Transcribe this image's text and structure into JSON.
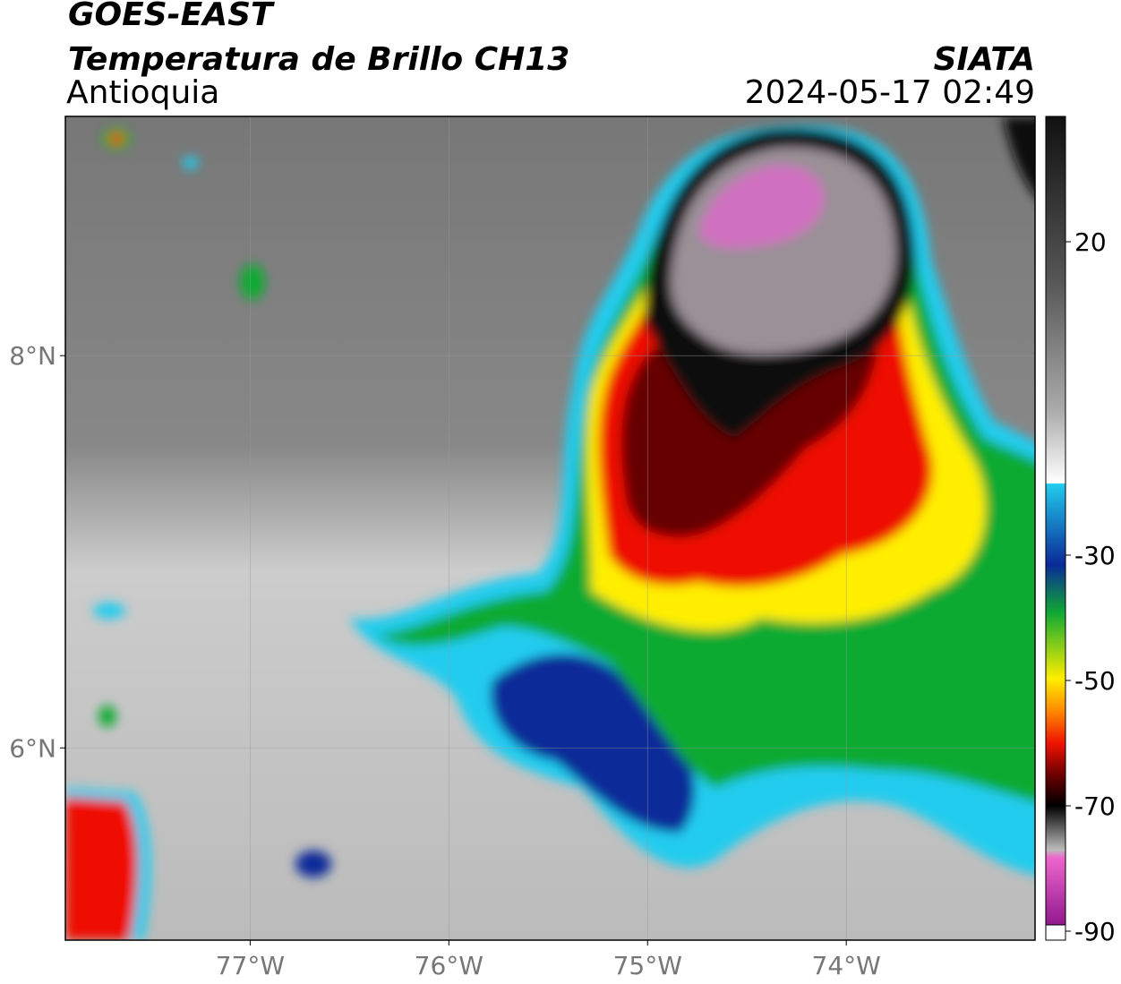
{
  "header": {
    "title": "GOES-EAST",
    "subtitle": "Temperatura de Brillo CH13",
    "region": "Antioquia",
    "source": "SIATA",
    "datetime": "2024-05-17 02:49"
  },
  "map": {
    "xlim": [
      -77.93,
      -73.05
    ],
    "ylim": [
      5.02,
      9.22
    ],
    "xticks": [
      {
        "value": -77,
        "label": "77°W"
      },
      {
        "value": -76,
        "label": "76°W"
      },
      {
        "value": -75,
        "label": "75°W"
      },
      {
        "value": -74,
        "label": "74°W"
      }
    ],
    "yticks": [
      {
        "value": 8,
        "label": "8°N"
      },
      {
        "value": 6,
        "label": "6°N"
      }
    ],
    "grid": true
  },
  "colorbar": {
    "lim": [
      -90,
      40
    ],
    "ticks": [
      20,
      -30,
      -50,
      -70,
      -90
    ]
  }
}
